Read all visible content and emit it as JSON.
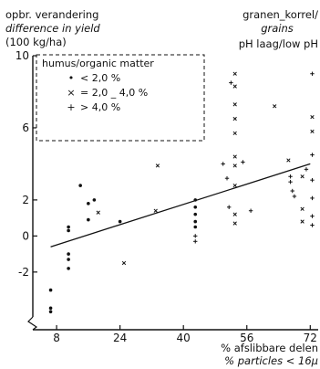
{
  "chart_data": {
    "type": "scatter",
    "title_left": [
      "opbr. verandering",
      "difference in yield",
      "(100 kg/ha)"
    ],
    "title_right": [
      "granen_korrel/",
      "grains",
      "pH laag/low pH"
    ],
    "xlabel": [
      "% afslibbare delen",
      "% particles < 16µ"
    ],
    "x_ticks": [
      "8",
      "24",
      "40",
      "56",
      "72"
    ],
    "y_ticks": [
      "10",
      "6",
      "2",
      "0",
      "-2"
    ],
    "xlim": [
      2,
      74
    ],
    "ylim": [
      -5.2,
      10
    ],
    "legend": {
      "title": "humus/organic matter",
      "entries": [
        {
          "symbol": "•",
          "label": "< 2,0 %"
        },
        {
          "symbol": "×",
          "label": "= 2,0 _ 4,0 %"
        },
        {
          "symbol": "+",
          "label": "> 4,0 %"
        }
      ]
    },
    "trendline": {
      "x": [
        6.5,
        72
      ],
      "y": [
        -0.6,
        4.0
      ]
    },
    "series": [
      {
        "symbol": "dot",
        "points": [
          [
            6.5,
            -3.0
          ],
          [
            6.5,
            -4.0
          ],
          [
            6.5,
            -4.2
          ],
          [
            11,
            0.5
          ],
          [
            11,
            0.3
          ],
          [
            11,
            -1.0
          ],
          [
            11,
            -1.3
          ],
          [
            11,
            -1.8
          ],
          [
            14,
            2.8
          ],
          [
            16,
            0.9
          ],
          [
            16,
            1.8
          ],
          [
            17.5,
            2.0
          ],
          [
            24,
            0.8
          ],
          [
            43,
            2.0
          ],
          [
            43,
            1.6
          ],
          [
            43,
            1.2
          ],
          [
            43,
            0.8
          ],
          [
            43,
            0.5
          ]
        ]
      },
      {
        "symbol": "x",
        "points": [
          [
            18.5,
            1.3
          ],
          [
            25,
            -1.5
          ],
          [
            33,
            1.4
          ],
          [
            33.5,
            3.9
          ],
          [
            53,
            9.0
          ],
          [
            53,
            8.3
          ],
          [
            53,
            7.3
          ],
          [
            53,
            6.5
          ],
          [
            53,
            5.7
          ],
          [
            53,
            4.4
          ],
          [
            53,
            3.9
          ],
          [
            53,
            2.8
          ],
          [
            53,
            1.2
          ],
          [
            53,
            0.7
          ],
          [
            63,
            7.2
          ],
          [
            66.5,
            4.2
          ],
          [
            70,
            3.3
          ],
          [
            70,
            1.5
          ],
          [
            70,
            0.8
          ],
          [
            72.5,
            6.6
          ],
          [
            72.5,
            5.8
          ]
        ]
      },
      {
        "symbol": "plus",
        "points": [
          [
            43,
            0.0
          ],
          [
            43,
            -0.3
          ],
          [
            50,
            4.0
          ],
          [
            51,
            3.2
          ],
          [
            51.5,
            1.6
          ],
          [
            52,
            8.5
          ],
          [
            55,
            4.1
          ],
          [
            57,
            1.4
          ],
          [
            67,
            3.3
          ],
          [
            67,
            3.0
          ],
          [
            67.5,
            2.5
          ],
          [
            68,
            2.2
          ],
          [
            71,
            3.7
          ],
          [
            72.5,
            9.0
          ],
          [
            72.5,
            4.5
          ],
          [
            72.5,
            3.1
          ],
          [
            72.5,
            2.1
          ],
          [
            72.5,
            1.1
          ],
          [
            72.5,
            0.6
          ]
        ]
      }
    ]
  }
}
